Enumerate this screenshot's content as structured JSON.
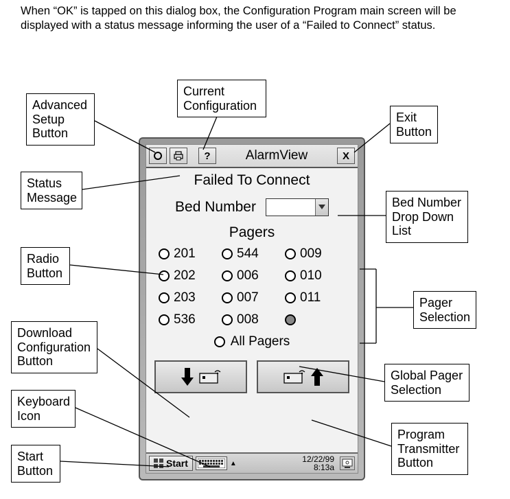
{
  "intro": "When “OK” is tapped on this dialog box, the Configuration Program main screen will be displayed with a status message informing the user of a “Failed to Connect” status.",
  "callouts": {
    "advancedSetup": "Advanced\nSetup\nButton",
    "currentConfig": "Current\nConfiguration",
    "exitButton": "Exit\nButton",
    "statusMessage": "Status\nMessage",
    "bedDropdown": "Bed Number\nDrop Down\nList",
    "radioButton": "Radio\nButton",
    "pagerSelection": "Pager\nSelection",
    "downloadConfig": "Download\nConfiguration\nButton",
    "globalPager": "Global Pager\nSelection",
    "keyboardIcon": "Keyboard\nIcon",
    "programTransmitter": "Program\nTransmitter\nButton",
    "startButton": "Start\nButton"
  },
  "app": {
    "title": "AlarmView",
    "status": "Failed To Connect",
    "bedLabel": "Bed Number",
    "pagersHeading": "Pagers",
    "pagers": [
      "201",
      "544",
      "009",
      "202",
      "006",
      "010",
      "203",
      "007",
      "011",
      "536",
      "008",
      ""
    ],
    "allPagers": "All Pagers",
    "startLabel": "Start",
    "date": "12/22/99",
    "time": "8:13a",
    "helpGlyph": "?",
    "closeGlyph": "X"
  },
  "style": {
    "text_color": "#000000",
    "device_bg": "#b0b0b0",
    "panel_bg": "#f2f2f2"
  }
}
